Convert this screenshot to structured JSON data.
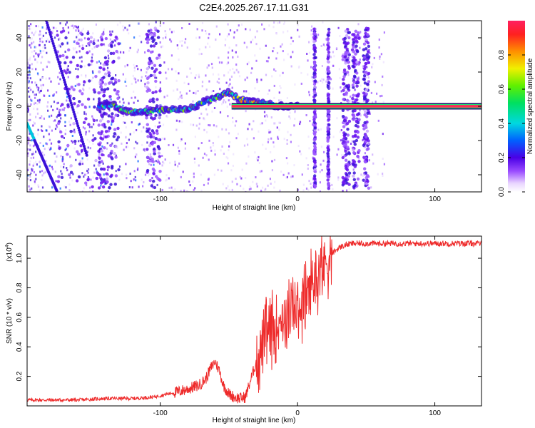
{
  "title": "C2E4.2025.267.17.11.G31",
  "colors": {
    "snr_line": "#ee2a2a",
    "dark_trace": "#ff2a55",
    "axis": "#000000"
  },
  "chart_data": [
    {
      "type": "heatmap",
      "name": "spectrogram",
      "xlabel": "Height of straight line (km)",
      "ylabel": "Frequency (Hz)",
      "xlim": [
        -197,
        134
      ],
      "ylim": [
        -50,
        50
      ],
      "x_ticks": [
        -100,
        0,
        100
      ],
      "x_tick_labels": [
        "-100",
        "0",
        "100"
      ],
      "y_ticks": [
        -40,
        -20,
        0,
        20,
        40
      ],
      "y_tick_labels": [
        "-40",
        "-20",
        "0",
        "20",
        "40"
      ],
      "colorbar": {
        "label": "Normalized spectral amplitude",
        "range": [
          0,
          1
        ],
        "ticks": [
          0.0,
          0.2,
          0.4,
          0.6,
          0.8
        ],
        "tick_labels": [
          "0.0",
          "0.2",
          "0.4",
          "0.6",
          "0.8"
        ]
      },
      "dominant_trace": {
        "description_points_km_hz": [
          [
            -145,
            0
          ],
          [
            -135,
            1
          ],
          [
            -125,
            -3
          ],
          [
            -110,
            -3
          ],
          [
            -95,
            -2
          ],
          [
            -80,
            -2
          ],
          [
            -70,
            2
          ],
          [
            -60,
            5
          ],
          [
            -50,
            8
          ],
          [
            -42,
            4
          ],
          [
            -30,
            2
          ],
          [
            -20,
            1
          ],
          [
            -10,
            0
          ],
          [
            0,
            0
          ],
          [
            30,
            0
          ],
          [
            134,
            0
          ]
        ]
      },
      "stripes_km": [
        [
          -175,
          -135
        ],
        [
          -145,
          -130
        ],
        [
          -110,
          -100
        ],
        [
          12,
          13
        ],
        [
          22,
          23
        ],
        [
          33,
          38
        ],
        [
          40,
          45
        ],
        [
          48,
          52
        ]
      ]
    },
    {
      "type": "line",
      "name": "snr",
      "xlabel": "Height of straight line (km)",
      "ylabel": "SNR (10 * v/v)",
      "multiplier_label": "(x10",
      "multiplier_exp": "4",
      "multiplier_close": ")",
      "xlim": [
        -197,
        134
      ],
      "ylim": [
        0,
        1.15
      ],
      "x_ticks": [
        -100,
        0,
        100
      ],
      "x_tick_labels": [
        "-100",
        "0",
        "100"
      ],
      "y_ticks": [
        0.2,
        0.4,
        0.6,
        0.8,
        1.0
      ],
      "y_tick_labels": [
        "0.2",
        "0.4",
        "0.6",
        "0.8",
        "1.0"
      ],
      "series": [
        {
          "name": "SNR",
          "x": [
            -197,
            -180,
            -160,
            -140,
            -120,
            -105,
            -95,
            -85,
            -78,
            -72,
            -67,
            -63,
            -60,
            -57,
            -54,
            -50,
            -46,
            -42,
            -38,
            -34,
            -30,
            -26,
            -22,
            -18,
            -14,
            -10,
            -6,
            -2,
            2,
            6,
            10,
            14,
            18,
            22,
            26,
            30,
            35,
            40,
            50,
            60,
            70,
            80,
            90,
            100,
            110,
            120,
            134
          ],
          "values": [
            0.04,
            0.04,
            0.04,
            0.05,
            0.05,
            0.06,
            0.08,
            0.1,
            0.12,
            0.14,
            0.18,
            0.26,
            0.3,
            0.24,
            0.14,
            0.08,
            0.06,
            0.05,
            0.06,
            0.18,
            0.3,
            0.4,
            0.48,
            0.52,
            0.58,
            0.6,
            0.62,
            0.64,
            0.68,
            0.74,
            0.82,
            0.88,
            0.95,
            1.0,
            1.04,
            1.07,
            1.09,
            1.1,
            1.1,
            1.1,
            1.1,
            1.1,
            1.1,
            1.1,
            1.1,
            1.1,
            1.1
          ]
        }
      ]
    }
  ]
}
